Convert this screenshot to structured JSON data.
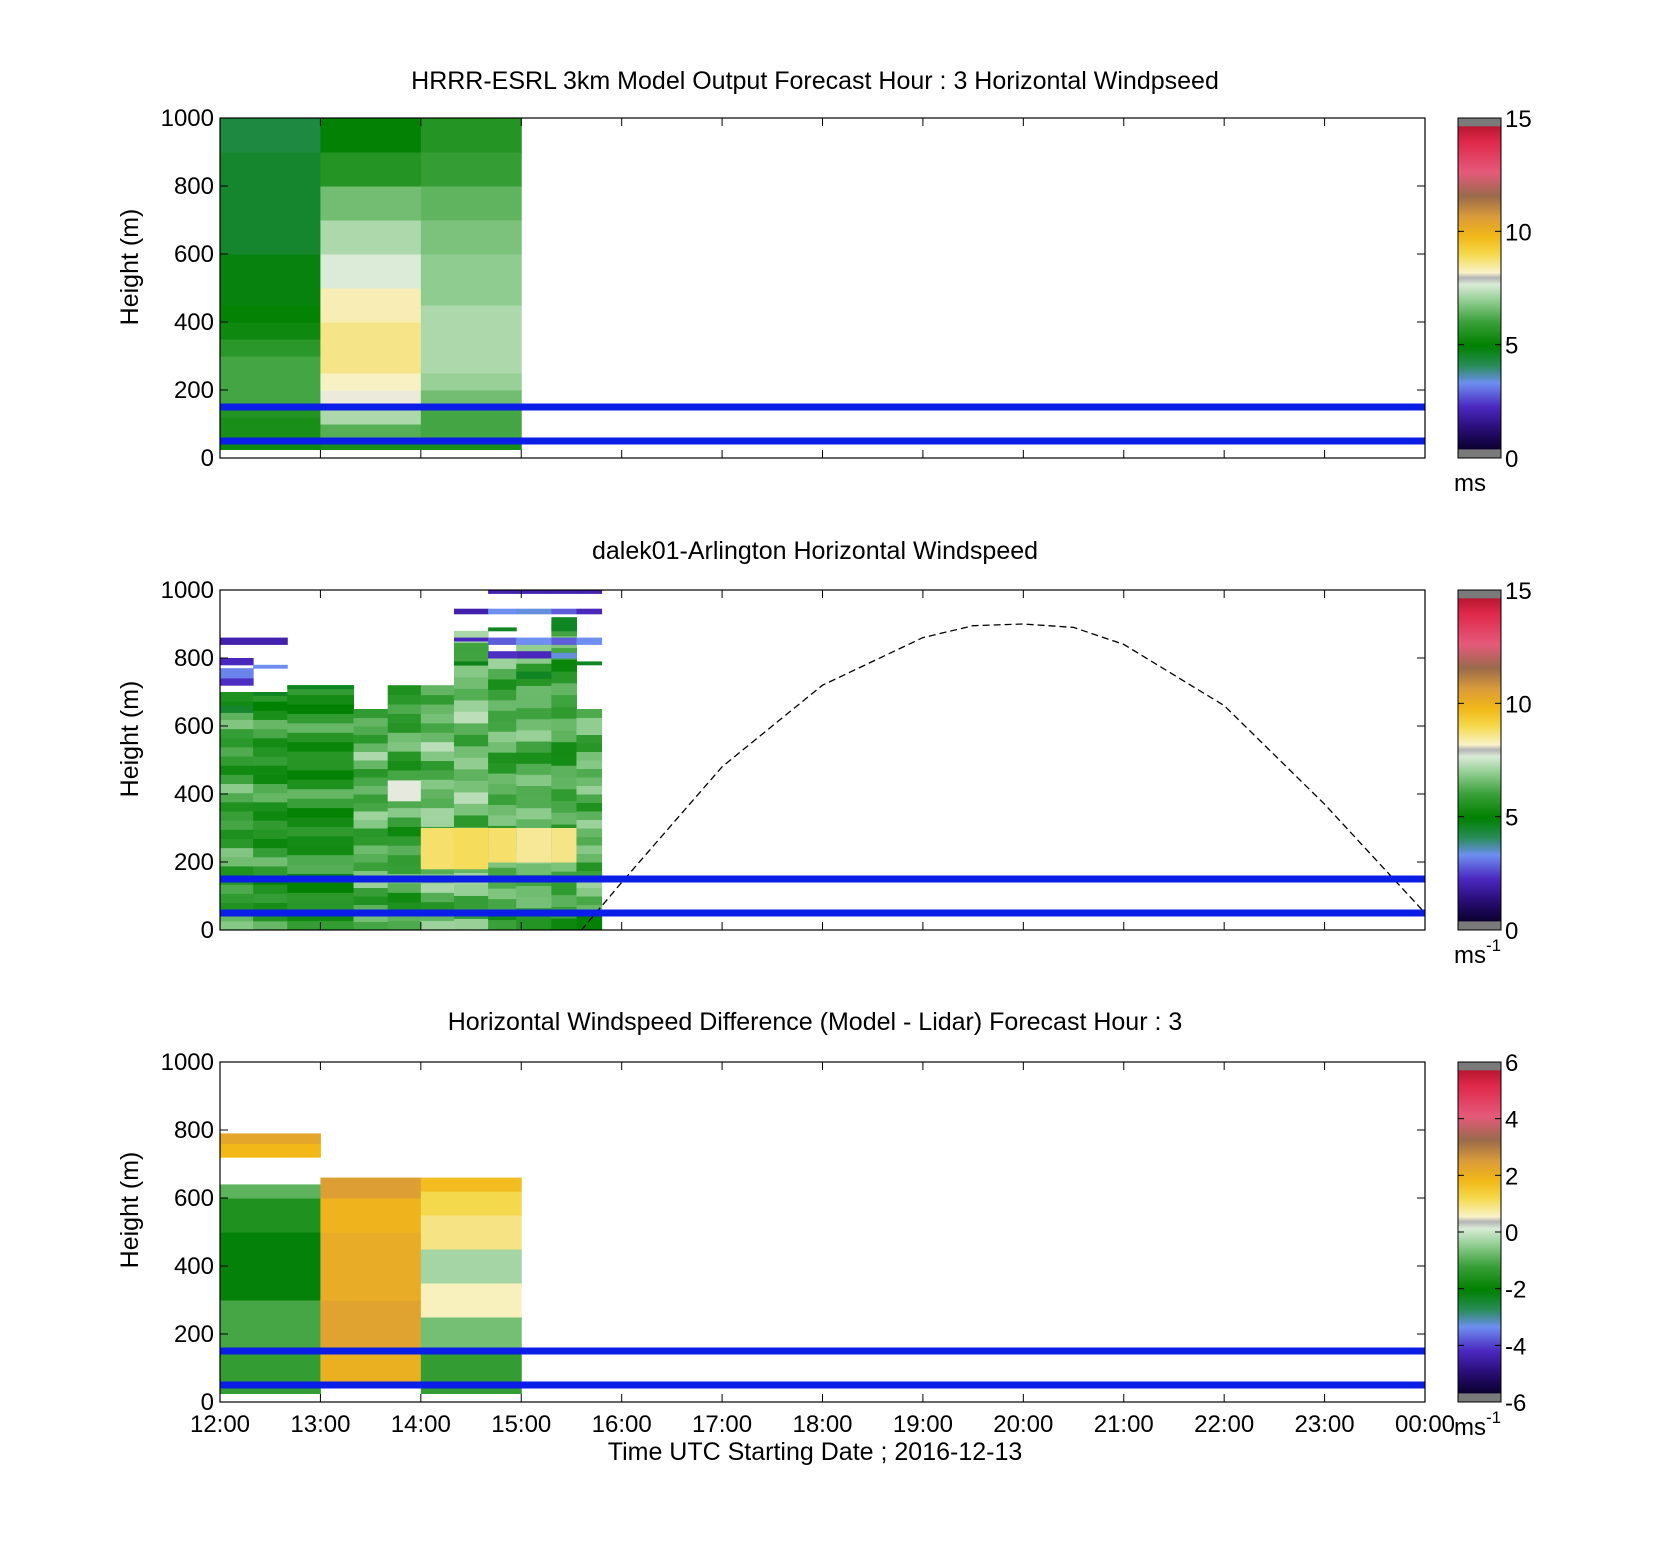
{
  "x_tick_labels": [
    "12:00",
    "13:00",
    "14:00",
    "15:00",
    "16:00",
    "17:00",
    "18:00",
    "19:00",
    "20:00",
    "21:00",
    "22:00",
    "23:00",
    "00:00"
  ],
  "x_axis_label": "Time UTC  Starting Date ; 2016-12-13",
  "chart_data": [
    {
      "type": "heatmap",
      "title": "HRRR-ESRL 3km Model Output   Forecast Hour : 3 Horizontal Windpseed",
      "ylabel": "Height (m)",
      "xlim_hours": [
        12,
        24
      ],
      "ylim": [
        0,
        1000
      ],
      "y_ticks": [
        0,
        200,
        400,
        600,
        800,
        1000
      ],
      "colorbar": {
        "range": [
          0,
          15
        ],
        "ticks": [
          0,
          5,
          10,
          15
        ],
        "unit": "ms",
        "unit_exp": ""
      },
      "columns": [
        {
          "start_hour": 12,
          "end_hour": 13,
          "bins": [
            {
              "bottom": 25,
              "top": 60,
              "speed": 5.2
            },
            {
              "bottom": 60,
              "top": 120,
              "speed": 5.4
            },
            {
              "bottom": 120,
              "top": 160,
              "speed": 5.6
            },
            {
              "bottom": 160,
              "top": 300,
              "speed": 6.1
            },
            {
              "bottom": 300,
              "top": 350,
              "speed": 5.7
            },
            {
              "bottom": 350,
              "top": 400,
              "speed": 5.2
            },
            {
              "bottom": 400,
              "top": 450,
              "speed": 5.0
            },
            {
              "bottom": 450,
              "top": 600,
              "speed": 4.8
            },
            {
              "bottom": 600,
              "top": 900,
              "speed": 4.5
            },
            {
              "bottom": 900,
              "top": 1000,
              "speed": 4.3
            }
          ]
        },
        {
          "start_hour": 13,
          "end_hour": 14,
          "bins": [
            {
              "bottom": 25,
              "top": 60,
              "speed": 5.4
            },
            {
              "bottom": 60,
              "top": 100,
              "speed": 6.3
            },
            {
              "bottom": 100,
              "top": 150,
              "speed": 7.2
            },
            {
              "bottom": 150,
              "top": 200,
              "speed": 8.0
            },
            {
              "bottom": 200,
              "top": 250,
              "speed": 8.2
            },
            {
              "bottom": 250,
              "top": 400,
              "speed": 8.6
            },
            {
              "bottom": 400,
              "top": 500,
              "speed": 8.3
            },
            {
              "bottom": 500,
              "top": 600,
              "speed": 7.7
            },
            {
              "bottom": 600,
              "top": 700,
              "speed": 7.2
            },
            {
              "bottom": 700,
              "top": 800,
              "speed": 6.6
            },
            {
              "bottom": 800,
              "top": 900,
              "speed": 5.6
            },
            {
              "bottom": 900,
              "top": 1000,
              "speed": 4.9
            }
          ]
        },
        {
          "start_hour": 14,
          "end_hour": 15,
          "bins": [
            {
              "bottom": 25,
              "top": 60,
              "speed": 5.4
            },
            {
              "bottom": 60,
              "top": 150,
              "speed": 6.1
            },
            {
              "bottom": 150,
              "top": 200,
              "speed": 6.6
            },
            {
              "bottom": 200,
              "top": 250,
              "speed": 7.0
            },
            {
              "bottom": 250,
              "top": 450,
              "speed": 7.2
            },
            {
              "bottom": 450,
              "top": 600,
              "speed": 6.9
            },
            {
              "bottom": 600,
              "top": 700,
              "speed": 6.7
            },
            {
              "bottom": 700,
              "top": 800,
              "speed": 6.4
            },
            {
              "bottom": 800,
              "top": 900,
              "speed": 5.9
            },
            {
              "bottom": 900,
              "top": 1000,
              "speed": 5.6
            }
          ]
        }
      ],
      "reference_lines_m": [
        50,
        150
      ]
    },
    {
      "type": "heatmap",
      "title": "dalek01-Arlington  Horizontal Windspeed",
      "ylabel": "Height (m)",
      "xlim_hours": [
        12,
        24
      ],
      "ylim": [
        0,
        1000
      ],
      "y_ticks": [
        0,
        200,
        400,
        600,
        800,
        1000
      ],
      "colorbar": {
        "range": [
          0,
          15
        ],
        "ticks": [
          0,
          5,
          10,
          15
        ],
        "unit": "ms",
        "unit_exp": "-1"
      },
      "columns": [
        {
          "start_hour": 12.0,
          "end_hour": 12.33,
          "top_m": 700,
          "base_speed": 6.0,
          "bins": [
            {
              "bottom": 840,
              "top": 860,
              "speed": 2.0
            },
            {
              "bottom": 780,
              "top": 800,
              "speed": 2.2
            },
            {
              "bottom": 740,
              "top": 770,
              "speed": 3.2
            },
            {
              "bottom": 720,
              "top": 740,
              "speed": 2.3
            },
            {
              "bottom": 640,
              "top": 660,
              "speed": 4.5
            }
          ]
        },
        {
          "start_hour": 12.33,
          "end_hour": 12.67,
          "top_m": 700,
          "base_speed": 5.7,
          "bins": [
            {
              "bottom": 840,
              "top": 860,
              "speed": 2.0
            },
            {
              "bottom": 770,
              "top": 780,
              "speed": 3.3
            },
            {
              "bottom": 690,
              "top": 700,
              "speed": 4.6
            }
          ]
        },
        {
          "start_hour": 12.67,
          "end_hour": 13.33,
          "top_m": 720,
          "base_speed": 5.6,
          "bins": [
            {
              "bottom": 710,
              "top": 720,
              "speed": 4.6
            }
          ]
        },
        {
          "start_hour": 13.33,
          "end_hour": 13.67,
          "top_m": 650,
          "base_speed": 6.3,
          "bins": []
        },
        {
          "start_hour": 13.67,
          "end_hour": 14.0,
          "top_m": 720,
          "base_speed": 6.0,
          "bins": [
            {
              "bottom": 380,
              "top": 440,
              "speed": 7.9
            }
          ]
        },
        {
          "start_hour": 14.0,
          "end_hour": 14.33,
          "top_m": 720,
          "base_speed": 6.5,
          "bins": [
            {
              "bottom": 180,
              "top": 300,
              "speed": 8.8
            }
          ]
        },
        {
          "start_hour": 14.33,
          "end_hour": 14.67,
          "top_m": 880,
          "base_speed": 6.6,
          "bins": [
            {
              "bottom": 930,
              "top": 945,
              "speed": 2.0
            },
            {
              "bottom": 850,
              "top": 860,
              "speed": 2.2
            },
            {
              "bottom": 780,
              "top": 790,
              "speed": 4.7
            },
            {
              "bottom": 180,
              "top": 300,
              "speed": 8.9
            }
          ]
        },
        {
          "start_hour": 14.67,
          "end_hour": 14.95,
          "top_m": 800,
          "base_speed": 6.2,
          "bins": [
            {
              "bottom": 990,
              "top": 1000,
              "speed": 2.0
            },
            {
              "bottom": 930,
              "top": 945,
              "speed": 3.3
            },
            {
              "bottom": 880,
              "top": 890,
              "speed": 4.6
            },
            {
              "bottom": 840,
              "top": 860,
              "speed": 2.8
            },
            {
              "bottom": 800,
              "top": 820,
              "speed": 2.3
            },
            {
              "bottom": 200,
              "top": 300,
              "speed": 8.8
            }
          ]
        },
        {
          "start_hour": 14.95,
          "end_hour": 15.3,
          "top_m": 850,
          "base_speed": 6.3,
          "bins": [
            {
              "bottom": 990,
              "top": 1000,
              "speed": 2.0
            },
            {
              "bottom": 930,
              "top": 945,
              "speed": 3.4
            },
            {
              "bottom": 840,
              "top": 860,
              "speed": 3.3
            },
            {
              "bottom": 800,
              "top": 820,
              "speed": 2.2
            },
            {
              "bottom": 740,
              "top": 760,
              "speed": 4.6
            },
            {
              "bottom": 200,
              "top": 300,
              "speed": 8.5
            }
          ]
        },
        {
          "start_hour": 15.3,
          "end_hour": 15.55,
          "top_m": 900,
          "base_speed": 6.0,
          "bins": [
            {
              "bottom": 990,
              "top": 1000,
              "speed": 2.0
            },
            {
              "bottom": 930,
              "top": 945,
              "speed": 2.8
            },
            {
              "bottom": 880,
              "top": 920,
              "speed": 4.6
            },
            {
              "bottom": 840,
              "top": 860,
              "speed": 2.8
            },
            {
              "bottom": 800,
              "top": 815,
              "speed": 3.4
            },
            {
              "bottom": 200,
              "top": 300,
              "speed": 8.6
            }
          ]
        },
        {
          "start_hour": 15.55,
          "end_hour": 15.8,
          "top_m": 650,
          "base_speed": 6.4,
          "bins": [
            {
              "bottom": 990,
              "top": 1000,
              "speed": 2.0
            },
            {
              "bottom": 930,
              "top": 945,
              "speed": 2.2
            },
            {
              "bottom": 840,
              "top": 860,
              "speed": 3.3
            },
            {
              "bottom": 780,
              "top": 790,
              "speed": 4.6
            },
            {
              "bottom": 0,
              "top": 60,
              "speed": 4.9
            }
          ]
        }
      ],
      "curve": {
        "style": "dashed",
        "x_hours": [
          15.6,
          16.0,
          17.0,
          18.0,
          19.0,
          19.5,
          20.0,
          20.5,
          21.0,
          22.0,
          23.0,
          24.0
        ],
        "y_m": [
          0,
          140,
          480,
          720,
          860,
          895,
          900,
          890,
          840,
          660,
          370,
          50
        ]
      },
      "reference_lines_m": [
        50,
        150
      ]
    },
    {
      "type": "heatmap",
      "title": "Horizontal Windspeed Difference (Model - Lidar) Forecast Hour : 3",
      "ylabel": "Height (m)",
      "xlim_hours": [
        12,
        24
      ],
      "ylim": [
        0,
        1000
      ],
      "y_ticks": [
        0,
        200,
        400,
        600,
        800,
        1000
      ],
      "colorbar": {
        "range": [
          -6,
          6
        ],
        "ticks": [
          -6,
          -4,
          -2,
          0,
          2,
          4,
          6
        ],
        "unit": "ms",
        "unit_exp": "-1"
      },
      "columns": [
        {
          "start_hour": 12,
          "end_hour": 13,
          "bins": [
            {
              "bottom": 25,
              "top": 150,
              "speed": -1.3
            },
            {
              "bottom": 150,
              "top": 300,
              "speed": -1.1
            },
            {
              "bottom": 300,
              "top": 500,
              "speed": -2.1
            },
            {
              "bottom": 500,
              "top": 600,
              "speed": -1.6
            },
            {
              "bottom": 600,
              "top": 640,
              "speed": -0.9
            },
            {
              "bottom": 720,
              "top": 760,
              "speed": 1.8
            },
            {
              "bottom": 760,
              "top": 790,
              "speed": 2.2
            }
          ]
        },
        {
          "start_hour": 13,
          "end_hour": 14,
          "bins": [
            {
              "bottom": 60,
              "top": 160,
              "speed": 2.0
            },
            {
              "bottom": 160,
              "top": 300,
              "speed": 2.3
            },
            {
              "bottom": 300,
              "top": 500,
              "speed": 2.1
            },
            {
              "bottom": 500,
              "top": 600,
              "speed": 1.9
            },
            {
              "bottom": 600,
              "top": 660,
              "speed": 2.4
            }
          ]
        },
        {
          "start_hour": 14,
          "end_hour": 15,
          "bins": [
            {
              "bottom": 25,
              "top": 150,
              "speed": -1.3
            },
            {
              "bottom": 150,
              "top": 250,
              "speed": -0.7
            },
            {
              "bottom": 250,
              "top": 350,
              "speed": 0.6
            },
            {
              "bottom": 350,
              "top": 450,
              "speed": -0.3
            },
            {
              "bottom": 450,
              "top": 550,
              "speed": 0.9
            },
            {
              "bottom": 550,
              "top": 620,
              "speed": 1.2
            },
            {
              "bottom": 620,
              "top": 660,
              "speed": 1.7
            }
          ]
        }
      ],
      "reference_lines_m": [
        50,
        150
      ]
    }
  ]
}
